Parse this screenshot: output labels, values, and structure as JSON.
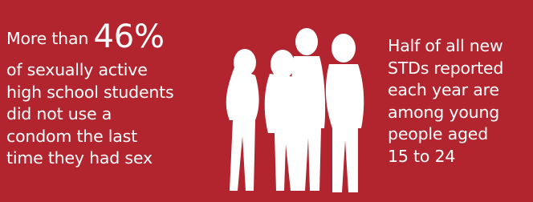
{
  "left_text": {
    "prefix": "More than",
    "highlight": "46%",
    "lines": [
      "of sexually active",
      "high school students",
      "did not use a",
      "condom the last",
      "time they had sex"
    ]
  },
  "right_text": {
    "lines": [
      "Half of all new",
      "STDs reported",
      "each year are",
      "among young",
      "people aged",
      "15 to 24"
    ]
  }
}
